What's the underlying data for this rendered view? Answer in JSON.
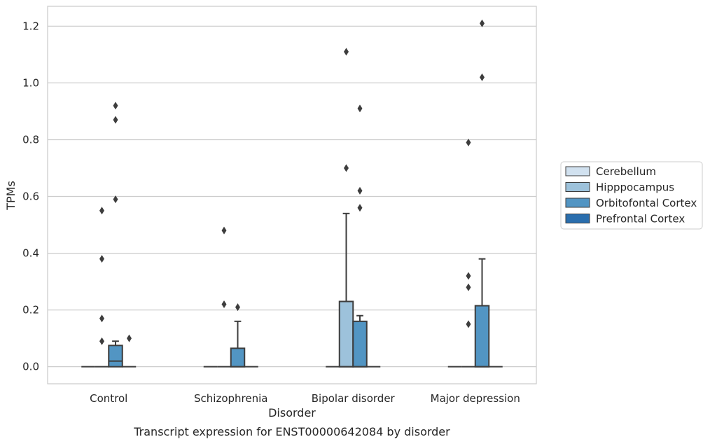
{
  "chart_data": {
    "type": "box",
    "xlabel": "Disorder",
    "ylabel": "TPMs",
    "caption": "Transcript expression for ENST00000642084 by disorder",
    "ylim": [
      -0.06,
      1.27
    ],
    "yticks": [
      "0.0",
      "0.2",
      "0.4",
      "0.6",
      "0.8",
      "1.0",
      "1.2"
    ],
    "grid": true,
    "legend_position": "right",
    "categories": [
      "Control",
      "Schizophrenia",
      "Bipolar disorder",
      "Major depression"
    ],
    "series": [
      {
        "name": "Cerebellum",
        "color": "#d1e1ef",
        "boxes": [
          {
            "q1": 0,
            "median": 0,
            "q3": 0,
            "whisker_low": 0,
            "whisker_high": 0,
            "outliers": []
          },
          {
            "q1": 0,
            "median": 0,
            "q3": 0,
            "whisker_low": 0,
            "whisker_high": 0,
            "outliers": []
          },
          {
            "q1": 0,
            "median": 0,
            "q3": 0,
            "whisker_low": 0,
            "whisker_high": 0,
            "outliers": []
          },
          {
            "q1": 0,
            "median": 0,
            "q3": 0,
            "whisker_low": 0,
            "whisker_high": 0,
            "outliers": []
          }
        ]
      },
      {
        "name": "Hipppocampus",
        "color": "#9dc2db",
        "boxes": [
          {
            "q1": 0,
            "median": 0,
            "q3": 0,
            "whisker_low": 0,
            "whisker_high": 0,
            "outliers": [
              0.09,
              0.17,
              0.38,
              0.55
            ]
          },
          {
            "q1": 0,
            "median": 0,
            "q3": 0,
            "whisker_low": 0,
            "whisker_high": 0,
            "outliers": [
              0.22,
              0.48
            ]
          },
          {
            "q1": 0,
            "median": 0,
            "q3": 0.23,
            "whisker_low": 0,
            "whisker_high": 0.54,
            "outliers": [
              0.7,
              1.11
            ]
          },
          {
            "q1": 0,
            "median": 0,
            "q3": 0,
            "whisker_low": 0,
            "whisker_high": 0,
            "outliers": [
              0.15,
              0.28,
              0.32,
              0.79
            ]
          }
        ]
      },
      {
        "name": "Orbitofontal Cortex",
        "color": "#5295c3",
        "boxes": [
          {
            "q1": 0,
            "median": 0.02,
            "q3": 0.075,
            "whisker_low": 0,
            "whisker_high": 0.09,
            "outliers": [
              0.59,
              0.87,
              0.92
            ]
          },
          {
            "q1": 0,
            "median": 0,
            "q3": 0.065,
            "whisker_low": 0,
            "whisker_high": 0.16,
            "outliers": [
              0.21
            ]
          },
          {
            "q1": 0,
            "median": 0,
            "q3": 0.16,
            "whisker_low": 0,
            "whisker_high": 0.18,
            "outliers": [
              0.56,
              0.62,
              0.91
            ]
          },
          {
            "q1": 0,
            "median": 0,
            "q3": 0.215,
            "whisker_low": 0,
            "whisker_high": 0.38,
            "outliers": [
              1.02,
              1.21
            ]
          }
        ]
      },
      {
        "name": "Prefrontal Cortex",
        "color": "#2a6ead",
        "boxes": [
          {
            "q1": 0,
            "median": 0,
            "q3": 0,
            "whisker_low": 0,
            "whisker_high": 0,
            "outliers": [
              0.1
            ]
          },
          {
            "q1": 0,
            "median": 0,
            "q3": 0,
            "whisker_low": 0,
            "whisker_high": 0,
            "outliers": []
          },
          {
            "q1": 0,
            "median": 0,
            "q3": 0,
            "whisker_low": 0,
            "whisker_high": 0,
            "outliers": []
          },
          {
            "q1": 0,
            "median": 0,
            "q3": 0,
            "whisker_low": 0,
            "whisker_high": 0,
            "outliers": []
          }
        ]
      }
    ]
  }
}
